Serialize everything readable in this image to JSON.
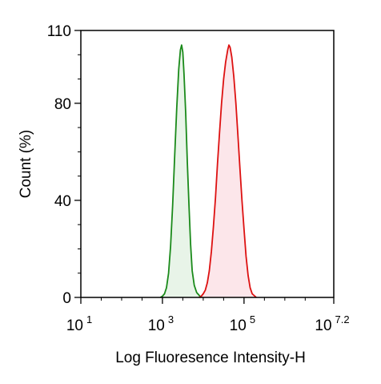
{
  "chart_data": {
    "type": "area",
    "title": "",
    "xlabel": "Log Fluoresence Intensity-H",
    "ylabel": "Count  (%)",
    "x_scale": "log10",
    "xlim": [
      1,
      7.2
    ],
    "ylim": [
      0,
      110
    ],
    "x_ticks": [
      {
        "base": "10",
        "exp": "1",
        "value": 1
      },
      {
        "base": "10",
        "exp": "3",
        "value": 3
      },
      {
        "base": "10",
        "exp": "5",
        "value": 5
      },
      {
        "base": "10",
        "exp": "7.2",
        "value": 7.2
      }
    ],
    "y_ticks": [
      {
        "label": "0",
        "value": 0
      },
      {
        "label": "40",
        "value": 40
      },
      {
        "label": "80",
        "value": 80
      },
      {
        "label": "110",
        "value": 110
      }
    ],
    "grid": false,
    "legend": "none",
    "series": [
      {
        "color": "#1a8a1a",
        "fill": "#e8f4e8",
        "points": [
          [
            2.95,
            0
          ],
          [
            3.0,
            0.5
          ],
          [
            3.05,
            1.5
          ],
          [
            3.1,
            4
          ],
          [
            3.15,
            10
          ],
          [
            3.2,
            21
          ],
          [
            3.25,
            38
          ],
          [
            3.3,
            58
          ],
          [
            3.35,
            78
          ],
          [
            3.4,
            94
          ],
          [
            3.44,
            102
          ],
          [
            3.47,
            104
          ],
          [
            3.5,
            101
          ],
          [
            3.53,
            92
          ],
          [
            3.57,
            76
          ],
          [
            3.61,
            56
          ],
          [
            3.65,
            38
          ],
          [
            3.69,
            22
          ],
          [
            3.73,
            11
          ],
          [
            3.78,
            5
          ],
          [
            3.84,
            2
          ],
          [
            3.92,
            0.5
          ],
          [
            4.0,
            0
          ]
        ]
      },
      {
        "color": "#dd1111",
        "fill": "#fce6ea",
        "points": [
          [
            3.9,
            0
          ],
          [
            3.95,
            0.5
          ],
          [
            4.0,
            1.5
          ],
          [
            4.05,
            3
          ],
          [
            4.1,
            6
          ],
          [
            4.15,
            11
          ],
          [
            4.2,
            19
          ],
          [
            4.25,
            29
          ],
          [
            4.3,
            41
          ],
          [
            4.35,
            55
          ],
          [
            4.4,
            68
          ],
          [
            4.45,
            80
          ],
          [
            4.5,
            90
          ],
          [
            4.55,
            97
          ],
          [
            4.6,
            102
          ],
          [
            4.63,
            104
          ],
          [
            4.66,
            103
          ],
          [
            4.7,
            99
          ],
          [
            4.75,
            91
          ],
          [
            4.8,
            80
          ],
          [
            4.85,
            67
          ],
          [
            4.9,
            53
          ],
          [
            4.95,
            40
          ],
          [
            5.0,
            28
          ],
          [
            5.05,
            17
          ],
          [
            5.1,
            9
          ],
          [
            5.15,
            4
          ],
          [
            5.2,
            1.5
          ],
          [
            5.3,
            0
          ]
        ]
      }
    ]
  }
}
